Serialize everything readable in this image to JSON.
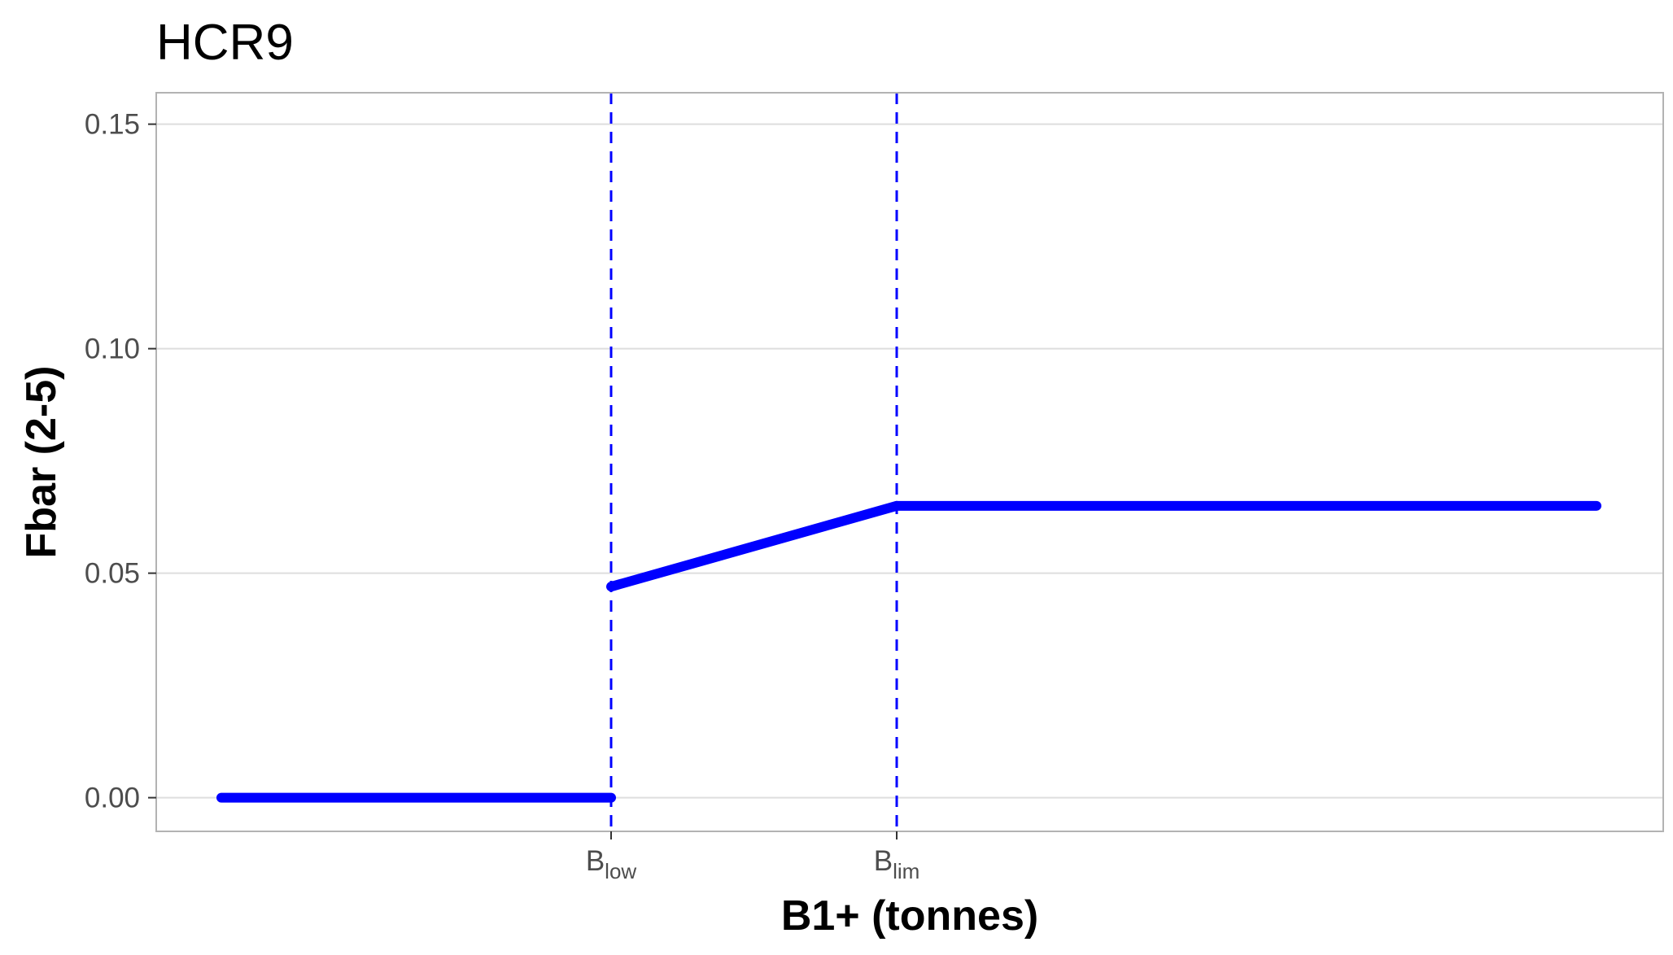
{
  "chart_data": {
    "type": "line",
    "title": "HCR9",
    "xlabel": "B1+ (tonnes)",
    "ylabel": "Fbar (2-5)",
    "ylim": [
      -0.0075,
      0.157
    ],
    "y_ticks": [
      {
        "value": 0.0,
        "label": "0.00"
      },
      {
        "value": 0.05,
        "label": "0.05"
      },
      {
        "value": 0.1,
        "label": "0.10"
      },
      {
        "value": 0.15,
        "label": "0.15"
      }
    ],
    "x_reference_lines": [
      {
        "name": "Blow",
        "label_main": "B",
        "label_sub": "low",
        "color": "#0000ff",
        "style": "dashed"
      },
      {
        "name": "Blim",
        "label_main": "B",
        "label_sub": "lim",
        "color": "#0000ff",
        "style": "dashed"
      }
    ],
    "series": [
      {
        "color": "#0000ff",
        "segments": [
          [
            {
              "x": "start",
              "y": 0.0
            },
            {
              "x": "Blow",
              "y": 0.0
            }
          ],
          [
            {
              "x": "Blow",
              "y": 0.047
            },
            {
              "x": "Blim",
              "y": 0.065
            }
          ],
          [
            {
              "x": "Blim",
              "y": 0.065
            },
            {
              "x": "end",
              "y": 0.065
            }
          ]
        ]
      }
    ],
    "grid": true,
    "legend": "none"
  }
}
